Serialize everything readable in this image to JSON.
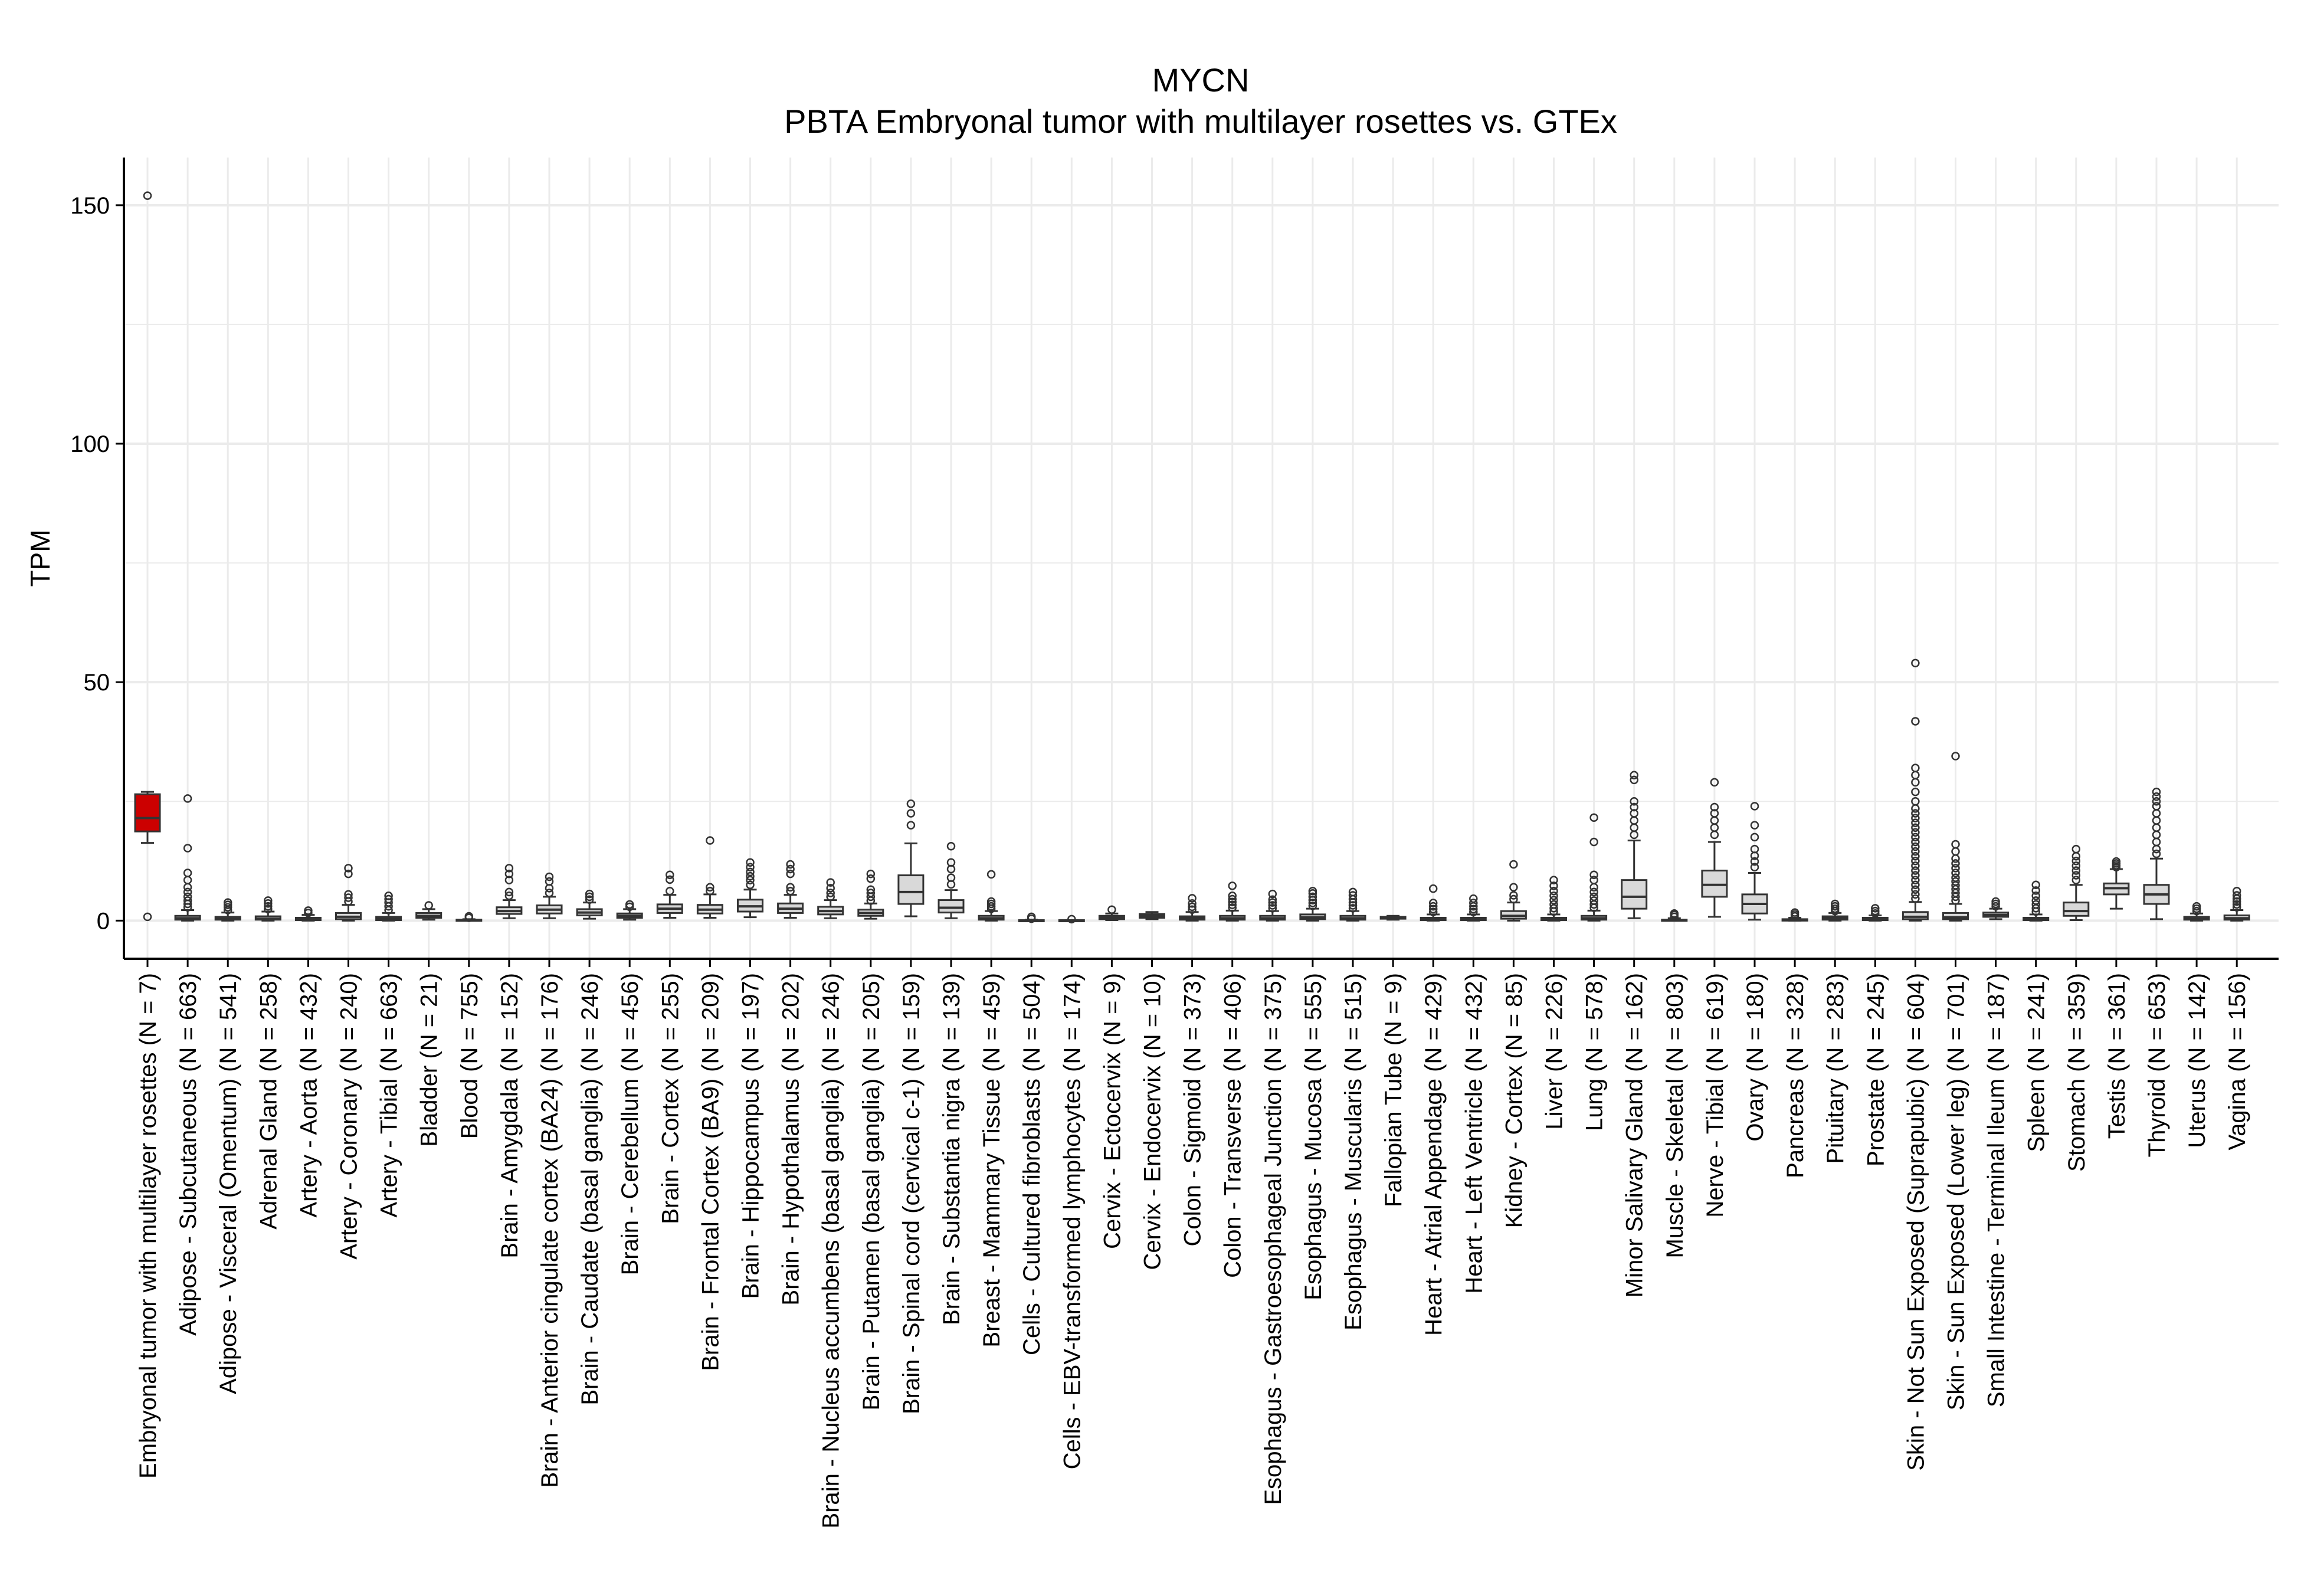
{
  "chart_data": {
    "type": "box",
    "title": "MYCN",
    "subtitle": "PBTA Embryonal tumor with multilayer rosettes vs. GTEx",
    "xlabel": "",
    "ylabel": "TPM",
    "ylim": [
      -8,
      160
    ],
    "yticks": [
      0,
      50,
      100,
      150
    ],
    "grid": true,
    "legend": "none",
    "colors": {
      "tumor_fill": "#cc0000",
      "normal_fill": "#d9d9d9",
      "box_stroke": "#333333",
      "grid": "#ebebeb",
      "axis": "#000000",
      "text": "#000000"
    },
    "categories": [
      "Embryonal tumor with multilayer rosettes (N = 7)",
      "Adipose - Subcutaneous (N = 663)",
      "Adipose - Visceral (Omentum) (N = 541)",
      "Adrenal Gland (N = 258)",
      "Artery - Aorta (N = 432)",
      "Artery - Coronary (N = 240)",
      "Artery - Tibial (N = 663)",
      "Bladder (N = 21)",
      "Blood (N = 755)",
      "Brain - Amygdala (N = 152)",
      "Brain - Anterior cingulate cortex (BA24) (N = 176)",
      "Brain - Caudate (basal ganglia) (N = 246)",
      "Brain - Cerebellum (N = 456)",
      "Brain - Cortex (N = 255)",
      "Brain - Frontal Cortex (BA9) (N = 209)",
      "Brain - Hippocampus (N = 197)",
      "Brain - Hypothalamus (N = 202)",
      "Brain - Nucleus accumbens (basal ganglia) (N = 246)",
      "Brain - Putamen (basal ganglia) (N = 205)",
      "Brain - Spinal cord (cervical c-1) (N = 159)",
      "Brain - Substantia nigra (N = 139)",
      "Breast - Mammary Tissue (N = 459)",
      "Cells - Cultured fibroblasts (N = 504)",
      "Cells - EBV-transformed lymphocytes (N = 174)",
      "Cervix - Ectocervix (N = 9)",
      "Cervix - Endocervix (N = 10)",
      "Colon - Sigmoid (N = 373)",
      "Colon - Transverse (N = 406)",
      "Esophagus - Gastroesophageal Junction (N = 375)",
      "Esophagus - Mucosa (N = 555)",
      "Esophagus - Muscularis (N = 515)",
      "Fallopian Tube (N = 9)",
      "Heart - Atrial Appendage (N = 429)",
      "Heart - Left Ventricle (N = 432)",
      "Kidney - Cortex (N = 85)",
      "Liver (N = 226)",
      "Lung (N = 578)",
      "Minor Salivary Gland (N = 162)",
      "Muscle - Skeletal (N = 803)",
      "Nerve - Tibial (N = 619)",
      "Ovary (N = 180)",
      "Pancreas (N = 328)",
      "Pituitary (N = 283)",
      "Prostate (N = 245)",
      "Skin - Not Sun Exposed (Suprapubic) (N = 604)",
      "Skin - Sun Exposed (Lower leg) (N = 701)",
      "Small Intestine - Terminal Ileum (N = 187)",
      "Spleen (N = 241)",
      "Stomach (N = 359)",
      "Testis (N = 361)",
      "Thyroid (N = 653)",
      "Uterus (N = 142)",
      "Vagina (N = 156)"
    ],
    "series": [
      {
        "boxes": [
          {
            "min": 16.3,
            "q1": 18.7,
            "median": 21.5,
            "q3": 26.5,
            "max": 27.0,
            "outliers": [
              0.8,
              152.0
            ],
            "tumor": true
          },
          {
            "min": 0.0,
            "q1": 0.2,
            "median": 0.5,
            "q3": 1.0,
            "max": 2.2,
            "outliers": [
              2.8,
              3.5,
              4.2,
              5.0,
              6.0,
              7.0,
              8.5,
              10.0,
              15.2,
              25.6
            ]
          },
          {
            "min": 0.0,
            "q1": 0.2,
            "median": 0.4,
            "q3": 0.8,
            "max": 1.7,
            "outliers": [
              2.2,
              2.8,
              3.3,
              3.8
            ]
          },
          {
            "min": 0.0,
            "q1": 0.2,
            "median": 0.4,
            "q3": 0.9,
            "max": 1.9,
            "outliers": [
              2.4,
              3.0,
              3.6,
              4.2
            ]
          },
          {
            "min": 0.0,
            "q1": 0.1,
            "median": 0.3,
            "q3": 0.6,
            "max": 1.2,
            "outliers": [
              1.6,
              2.1
            ]
          },
          {
            "min": 0.0,
            "q1": 0.3,
            "median": 0.8,
            "q3": 1.6,
            "max": 3.3,
            "outliers": [
              4.0,
              4.8,
              5.5,
              9.8,
              11.0
            ]
          },
          {
            "min": 0.0,
            "q1": 0.1,
            "median": 0.4,
            "q3": 0.8,
            "max": 1.6,
            "outliers": [
              2.2,
              3.0,
              3.8,
              4.5,
              5.2
            ]
          },
          {
            "min": 0.2,
            "q1": 0.6,
            "median": 1.0,
            "q3": 1.6,
            "max": 2.4,
            "outliers": [
              3.2
            ]
          },
          {
            "min": 0.0,
            "q1": 0.0,
            "median": 0.1,
            "q3": 0.2,
            "max": 0.3,
            "outliers": [
              0.6,
              0.9
            ]
          },
          {
            "min": 0.5,
            "q1": 1.4,
            "median": 2.0,
            "q3": 2.8,
            "max": 4.3,
            "outliers": [
              5.2,
              6.0,
              8.5,
              9.8,
              11.0
            ]
          },
          {
            "min": 0.5,
            "q1": 1.5,
            "median": 2.3,
            "q3": 3.2,
            "max": 5.0,
            "outliers": [
              5.8,
              6.8,
              8.2,
              9.2
            ]
          },
          {
            "min": 0.4,
            "q1": 1.1,
            "median": 1.7,
            "q3": 2.4,
            "max": 3.8,
            "outliers": [
              4.4,
              5.0,
              5.6
            ]
          },
          {
            "min": 0.2,
            "q1": 0.6,
            "median": 1.0,
            "q3": 1.5,
            "max": 2.4,
            "outliers": [
              2.9,
              3.4
            ]
          },
          {
            "min": 0.6,
            "q1": 1.6,
            "median": 2.5,
            "q3": 3.4,
            "max": 5.4,
            "outliers": [
              6.2,
              8.6,
              9.6
            ]
          },
          {
            "min": 0.6,
            "q1": 1.5,
            "median": 2.3,
            "q3": 3.3,
            "max": 5.5,
            "outliers": [
              6.2,
              7.0,
              16.8
            ]
          },
          {
            "min": 0.7,
            "q1": 1.9,
            "median": 3.0,
            "q3": 4.4,
            "max": 6.5,
            "outliers": [
              7.5,
              8.5,
              9.3,
              10.2,
              11.2,
              12.2
            ]
          },
          {
            "min": 0.6,
            "q1": 1.6,
            "median": 2.5,
            "q3": 3.6,
            "max": 5.4,
            "outliers": [
              6.2,
              7.0,
              9.8,
              10.8,
              11.8
            ]
          },
          {
            "min": 0.5,
            "q1": 1.3,
            "median": 2.0,
            "q3": 2.9,
            "max": 4.3,
            "outliers": [
              5.0,
              5.8,
              6.8,
              8.0
            ]
          },
          {
            "min": 0.4,
            "q1": 1.0,
            "median": 1.6,
            "q3": 2.3,
            "max": 3.6,
            "outliers": [
              4.2,
              5.0,
              5.8,
              6.5,
              8.8,
              9.8
            ]
          },
          {
            "min": 0.9,
            "q1": 3.5,
            "median": 6.0,
            "q3": 9.5,
            "max": 16.2,
            "outliers": [
              20.0,
              22.5,
              24.5
            ]
          },
          {
            "min": 0.5,
            "q1": 1.7,
            "median": 2.7,
            "q3": 4.3,
            "max": 6.4,
            "outliers": [
              7.6,
              9.0,
              10.8,
              12.2,
              15.6
            ]
          },
          {
            "min": 0.0,
            "q1": 0.2,
            "median": 0.5,
            "q3": 1.0,
            "max": 2.0,
            "outliers": [
              2.5,
              3.0,
              3.5,
              4.0,
              9.7
            ]
          },
          {
            "min": 0.0,
            "q1": 0.0,
            "median": 0.0,
            "q3": 0.1,
            "max": 0.2,
            "outliers": [
              0.4,
              0.8
            ]
          },
          {
            "min": 0.0,
            "q1": 0.0,
            "median": 0.0,
            "q3": 0.1,
            "max": 0.1,
            "outliers": [
              0.3
            ]
          },
          {
            "min": 0.1,
            "q1": 0.3,
            "median": 0.6,
            "q3": 1.0,
            "max": 1.5,
            "outliers": [
              2.3
            ]
          },
          {
            "min": 0.3,
            "q1": 0.6,
            "median": 1.0,
            "q3": 1.4,
            "max": 1.8,
            "outliers": []
          },
          {
            "min": 0.0,
            "q1": 0.2,
            "median": 0.5,
            "q3": 0.9,
            "max": 1.8,
            "outliers": [
              2.3,
              2.9,
              3.6,
              4.7
            ]
          },
          {
            "min": 0.0,
            "q1": 0.2,
            "median": 0.5,
            "q3": 1.0,
            "max": 2.1,
            "outliers": [
              2.7,
              3.3,
              3.9,
              4.5,
              5.2,
              7.3
            ]
          },
          {
            "min": 0.0,
            "q1": 0.2,
            "median": 0.5,
            "q3": 1.0,
            "max": 2.0,
            "outliers": [
              2.6,
              3.2,
              3.8,
              4.4,
              5.6
            ]
          },
          {
            "min": 0.0,
            "q1": 0.3,
            "median": 0.7,
            "q3": 1.3,
            "max": 2.5,
            "outliers": [
              3.1,
              3.7,
              4.3,
              5.0,
              5.7,
              6.2
            ]
          },
          {
            "min": 0.0,
            "q1": 0.2,
            "median": 0.5,
            "q3": 1.0,
            "max": 2.0,
            "outliers": [
              2.6,
              3.2,
              3.8,
              4.5,
              5.3,
              6.0
            ]
          },
          {
            "min": 0.2,
            "q1": 0.4,
            "median": 0.6,
            "q3": 0.8,
            "max": 1.0,
            "outliers": []
          },
          {
            "min": 0.0,
            "q1": 0.1,
            "median": 0.3,
            "q3": 0.6,
            "max": 1.3,
            "outliers": [
              1.8,
              2.4,
              3.0,
              3.7,
              6.7
            ]
          },
          {
            "min": 0.0,
            "q1": 0.1,
            "median": 0.3,
            "q3": 0.6,
            "max": 1.3,
            "outliers": [
              1.8,
              2.4,
              3.0,
              3.7,
              4.6
            ]
          },
          {
            "min": 0.0,
            "q1": 0.4,
            "median": 1.0,
            "q3": 2.0,
            "max": 3.8,
            "outliers": [
              4.5,
              5.3,
              7.0,
              11.8
            ]
          },
          {
            "min": 0.0,
            "q1": 0.1,
            "median": 0.3,
            "q3": 0.6,
            "max": 1.3,
            "outliers": [
              1.9,
              2.6,
              3.4,
              4.3,
              5.2,
              6.2,
              7.3,
              8.5
            ]
          },
          {
            "min": 0.0,
            "q1": 0.2,
            "median": 0.5,
            "q3": 1.0,
            "max": 2.1,
            "outliers": [
              2.7,
              3.4,
              4.2,
              5.0,
              6.0,
              7.0,
              8.5,
              9.6,
              16.5,
              21.6
            ]
          },
          {
            "min": 0.5,
            "q1": 2.5,
            "median": 5.0,
            "q3": 8.5,
            "max": 16.8,
            "outliers": [
              18.0,
              19.5,
              21.0,
              22.5,
              23.8,
              25.0,
              29.5,
              30.5
            ]
          },
          {
            "min": 0.0,
            "q1": 0.0,
            "median": 0.1,
            "q3": 0.2,
            "max": 0.5,
            "outliers": [
              0.8,
              1.2,
              1.5
            ]
          },
          {
            "min": 0.8,
            "q1": 5.0,
            "median": 7.5,
            "q3": 10.5,
            "max": 16.5,
            "outliers": [
              18.0,
              19.5,
              21.0,
              22.5,
              23.8,
              29.0
            ]
          },
          {
            "min": 0.2,
            "q1": 1.5,
            "median": 3.5,
            "q3": 5.5,
            "max": 10.0,
            "outliers": [
              11.2,
              12.4,
              13.6,
              15.0,
              17.5,
              20.0,
              24.0
            ]
          },
          {
            "min": 0.0,
            "q1": 0.0,
            "median": 0.1,
            "q3": 0.3,
            "max": 0.6,
            "outliers": [
              0.9,
              1.3,
              1.7
            ]
          },
          {
            "min": 0.0,
            "q1": 0.2,
            "median": 0.5,
            "q3": 0.9,
            "max": 1.6,
            "outliers": [
              2.0,
              2.5,
              3.0,
              3.5
            ]
          },
          {
            "min": 0.0,
            "q1": 0.1,
            "median": 0.3,
            "q3": 0.6,
            "max": 1.1,
            "outliers": [
              1.5,
              2.0,
              2.6
            ]
          },
          {
            "min": 0.0,
            "q1": 0.3,
            "median": 0.8,
            "q3": 1.8,
            "max": 3.9,
            "outliers": [
              4.6,
              5.5,
              6.5,
              7.5,
              8.5,
              9.5,
              10.5,
              11.5,
              12.5,
              13.5,
              14.5,
              15.5,
              16.5,
              17.5,
              18.5,
              19.5,
              20.5,
              21.5,
              22.5,
              23.5,
              25.0,
              27.0,
              29.0,
              30.5,
              32.0,
              41.8,
              54.0
            ]
          },
          {
            "min": 0.0,
            "q1": 0.3,
            "median": 0.7,
            "q3": 1.6,
            "max": 3.5,
            "outliers": [
              4.2,
              5.0,
              5.8,
              6.6,
              7.4,
              8.2,
              9.0,
              10.0,
              11.0,
              12.0,
              13.0,
              14.5,
              16.0,
              34.5
            ]
          },
          {
            "min": 0.3,
            "q1": 0.8,
            "median": 1.2,
            "q3": 1.7,
            "max": 2.5,
            "outliers": [
              3.0,
              3.5,
              4.0
            ]
          },
          {
            "min": 0.0,
            "q1": 0.1,
            "median": 0.3,
            "q3": 0.6,
            "max": 1.3,
            "outliers": [
              1.9,
              2.6,
              3.4,
              4.2,
              5.2,
              6.3,
              7.5
            ]
          },
          {
            "min": 0.1,
            "q1": 1.0,
            "median": 2.0,
            "q3": 3.8,
            "max": 7.5,
            "outliers": [
              8.5,
              9.5,
              10.5,
              11.5,
              12.5,
              13.5,
              15.0
            ]
          },
          {
            "min": 2.5,
            "q1": 5.5,
            "median": 6.8,
            "q3": 7.8,
            "max": 10.8,
            "outliers": [
              11.2,
              11.6,
              12.0,
              12.4
            ]
          },
          {
            "min": 0.3,
            "q1": 3.5,
            "median": 5.5,
            "q3": 7.5,
            "max": 13.0,
            "outliers": [
              14.0,
              15.0,
              16.5,
              18.0,
              19.5,
              21.0,
              22.5,
              24.0,
              25.0,
              26.0,
              27.0
            ]
          },
          {
            "min": 0.0,
            "q1": 0.2,
            "median": 0.4,
            "q3": 0.8,
            "max": 1.5,
            "outliers": [
              2.0,
              2.5,
              3.0
            ]
          },
          {
            "min": 0.0,
            "q1": 0.2,
            "median": 0.5,
            "q3": 1.1,
            "max": 2.2,
            "outliers": [
              2.8,
              3.4,
              4.0,
              4.6,
              5.3,
              6.2
            ]
          }
        ]
      }
    ]
  }
}
